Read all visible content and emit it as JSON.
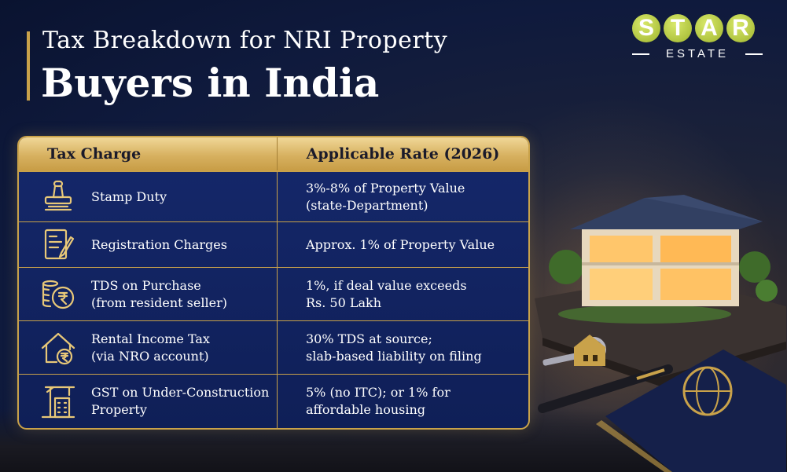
{
  "title": {
    "line1": "Tax Breakdown for NRI Property",
    "line2": "Buyers in India"
  },
  "logo": {
    "letters": [
      "S",
      "T",
      "A",
      "R"
    ],
    "sub": "ESTATE"
  },
  "table": {
    "headers": [
      "Tax Charge",
      "Applicable Rate (2026)"
    ],
    "rows": [
      {
        "icon": "stamp-icon",
        "charge": [
          "Stamp Duty"
        ],
        "rate": [
          "3%-8% of Property Value",
          "(state-Department)"
        ]
      },
      {
        "icon": "document-pen-icon",
        "charge": [
          "Registration Charges"
        ],
        "rate": [
          "Approx. 1% of Property Value"
        ]
      },
      {
        "icon": "rupee-coins-icon",
        "charge": [
          "TDS on Purchase",
          "(from resident seller)"
        ],
        "rate": [
          "1%, if deal value exceeds",
          "Rs. 50 Lakh"
        ]
      },
      {
        "icon": "house-rupee-icon",
        "charge": [
          "Rental Income Tax",
          "(via NRO account)"
        ],
        "rate": [
          "30% TDS at source;",
          "slab-based liability on filing"
        ]
      },
      {
        "icon": "construction-building-icon",
        "charge": [
          "GST on Under-Construction",
          "Property"
        ],
        "rate": [
          "5% (no ITC); or 1% for",
          "affordable housing"
        ]
      }
    ]
  },
  "colors": {
    "gold": "#c9a24a",
    "navy": "#0f1f57",
    "logo_green": "#9fb52e"
  }
}
